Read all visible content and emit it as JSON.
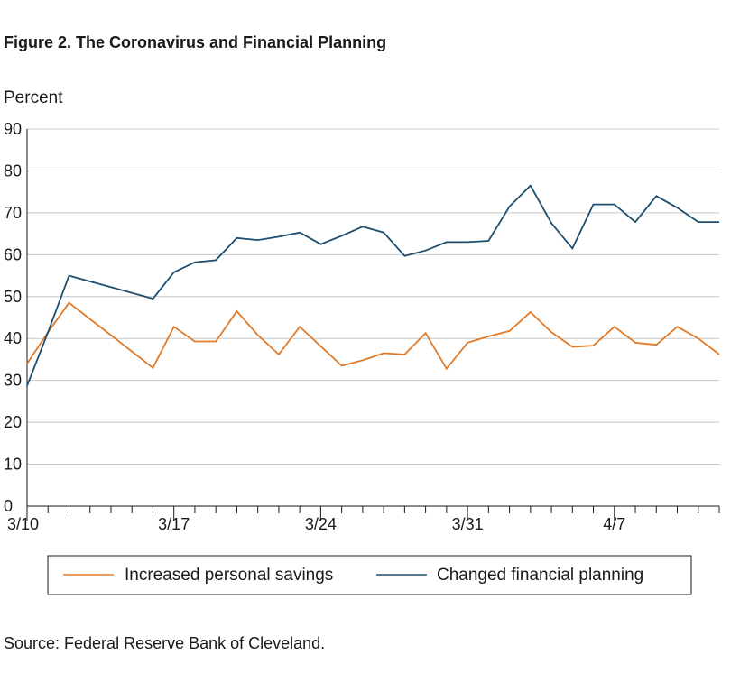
{
  "figure": {
    "title": "Figure 2. The Coronavirus and Financial Planning",
    "source": "Source: Federal Reserve Bank of Cleveland."
  },
  "chart_data": {
    "type": "line",
    "title": "Figure 2. The Coronavirus and Financial Planning",
    "ylabel": "Percent",
    "xlabel": "",
    "ylim": [
      0,
      90
    ],
    "yticks": [
      0,
      10,
      20,
      30,
      40,
      50,
      60,
      70,
      80,
      90
    ],
    "grid": true,
    "legend_position": "bottom",
    "x": [
      "3/10",
      "3/11",
      "3/12",
      "3/13",
      "3/14",
      "3/15",
      "3/16",
      "3/17",
      "3/18",
      "3/19",
      "3/20",
      "3/21",
      "3/22",
      "3/23",
      "3/24",
      "3/25",
      "3/26",
      "3/27",
      "3/28",
      "3/29",
      "3/30",
      "3/31",
      "4/1",
      "4/2",
      "4/3",
      "4/4",
      "4/5",
      "4/6",
      "4/7",
      "4/8",
      "4/9",
      "4/10",
      "4/11",
      "4/12"
    ],
    "xtick_labels": [
      "3/10",
      "3/17",
      "3/24",
      "3/31",
      "4/7"
    ],
    "series": [
      {
        "name": "Increased personal savings",
        "color": "#e07b2a",
        "values": [
          34,
          41.5,
          48.5,
          null,
          null,
          null,
          33,
          42.8,
          39.3,
          39.3,
          46.5,
          40.8,
          36.2,
          42.8,
          null,
          33.5,
          34.8,
          36.5,
          36.2,
          41.3,
          32.8,
          39,
          40.5,
          41.8,
          46.3,
          41.5,
          38,
          38.3,
          42.8,
          39,
          38.5,
          42.8,
          40,
          36.2
        ]
      },
      {
        "name": "Changed financial planning",
        "color": "#1d4e6f",
        "values": [
          28.7,
          41.5,
          55,
          null,
          null,
          null,
          49.5,
          55.8,
          58.2,
          58.7,
          64,
          63.5,
          64.3,
          65.3,
          62.5,
          64.5,
          66.7,
          65.3,
          59.7,
          61,
          63,
          63,
          63.3,
          71.5,
          76.5,
          67.5,
          61.5,
          72,
          72,
          67.8,
          74,
          71.2,
          67.8,
          67.8
        ]
      }
    ]
  },
  "legend": {
    "items": [
      {
        "label": "Increased personal savings",
        "color": "#e07b2a"
      },
      {
        "label": "Changed financial planning",
        "color": "#1d4e6f"
      }
    ]
  }
}
